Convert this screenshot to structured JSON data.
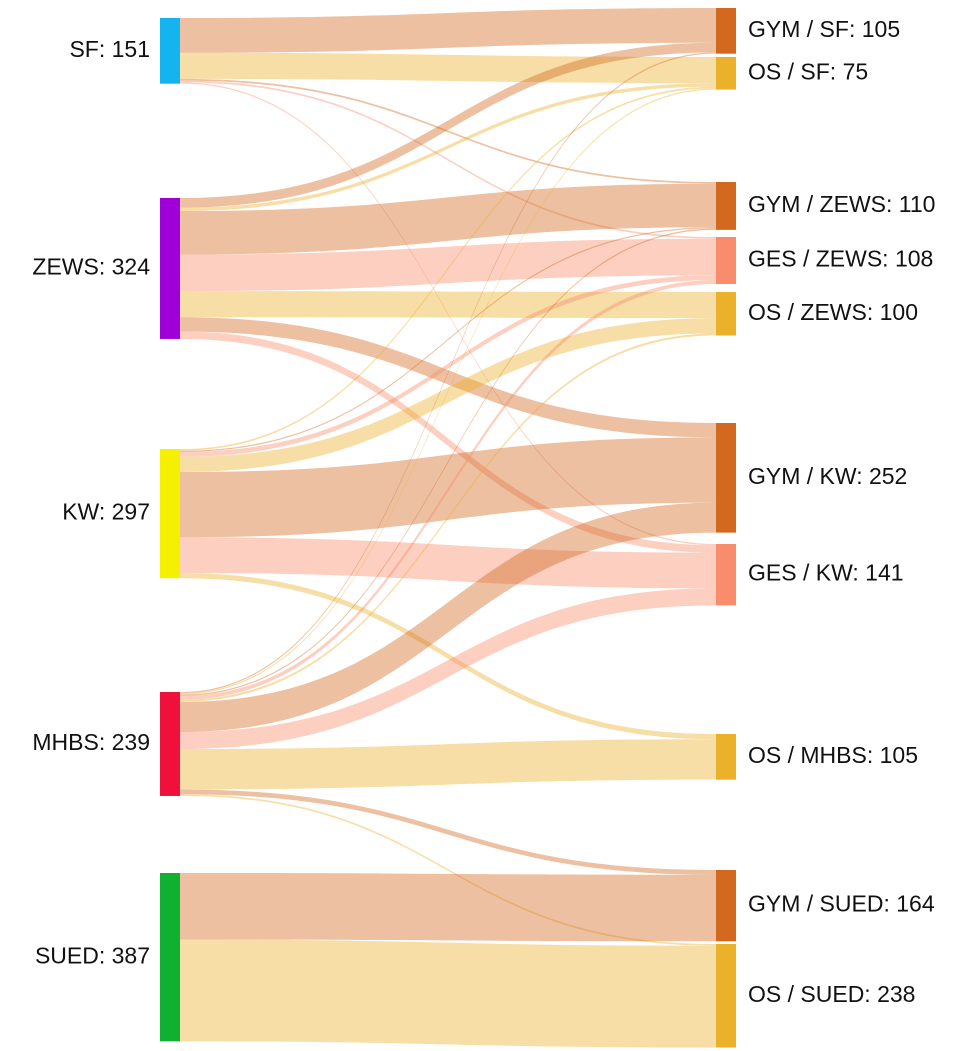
{
  "chart_data": {
    "type": "sankey",
    "nodes": [
      {
        "name": "SF: 151",
        "value": 151,
        "color": "#14b4f0"
      },
      {
        "name": "ZEWS: 324",
        "value": 324,
        "color": "#a000d8"
      },
      {
        "name": "KW: 297",
        "value": 297,
        "color": "#f5f000"
      },
      {
        "name": "MHBS: 239",
        "value": 239,
        "color": "#f0103c"
      },
      {
        "name": "SUED: 387",
        "value": 387,
        "color": "#10b030"
      },
      {
        "name": "GYM / SF: 105",
        "value": 105,
        "color": "#d2691e"
      },
      {
        "name": "OS / SF: 75",
        "value": 75,
        "color": "#ecb12a"
      },
      {
        "name": "GYM / ZEWS: 110",
        "value": 110,
        "color": "#d2691e"
      },
      {
        "name": "GES / ZEWS: 108",
        "value": 108,
        "color": "#f88c6c"
      },
      {
        "name": "OS / ZEWS: 100",
        "value": 100,
        "color": "#ecb12a"
      },
      {
        "name": "GYM / KW: 252",
        "value": 252,
        "color": "#d2691e"
      },
      {
        "name": "GES / KW: 141",
        "value": 141,
        "color": "#f88c6c"
      },
      {
        "name": "OS / MHBS: 105",
        "value": 105,
        "color": "#ecb12a"
      },
      {
        "name": "GYM / SUED: 164",
        "value": 164,
        "color": "#d2691e"
      },
      {
        "name": "OS / SUED: 238",
        "value": 238,
        "color": "#ecb12a"
      }
    ],
    "links": [
      {
        "source": 0,
        "target": 5,
        "value": 80
      },
      {
        "source": 0,
        "target": 6,
        "value": 60
      },
      {
        "source": 0,
        "target": 7,
        "value": 4
      },
      {
        "source": 0,
        "target": 8,
        "value": 4
      },
      {
        "source": 0,
        "target": 11,
        "value": 3
      },
      {
        "source": 1,
        "target": 5,
        "value": 22
      },
      {
        "source": 1,
        "target": 6,
        "value": 8
      },
      {
        "source": 1,
        "target": 7,
        "value": 100
      },
      {
        "source": 1,
        "target": 8,
        "value": 84
      },
      {
        "source": 1,
        "target": 9,
        "value": 60
      },
      {
        "source": 1,
        "target": 10,
        "value": 33
      },
      {
        "source": 1,
        "target": 11,
        "value": 17
      },
      {
        "source": 2,
        "target": 6,
        "value": 4
      },
      {
        "source": 2,
        "target": 7,
        "value": 3
      },
      {
        "source": 2,
        "target": 8,
        "value": 11
      },
      {
        "source": 2,
        "target": 9,
        "value": 35
      },
      {
        "source": 2,
        "target": 10,
        "value": 150
      },
      {
        "source": 2,
        "target": 11,
        "value": 82
      },
      {
        "source": 2,
        "target": 12,
        "value": 12
      },
      {
        "source": 3,
        "target": 5,
        "value": 3
      },
      {
        "source": 3,
        "target": 6,
        "value": 3
      },
      {
        "source": 3,
        "target": 7,
        "value": 3
      },
      {
        "source": 3,
        "target": 8,
        "value": 9
      },
      {
        "source": 3,
        "target": 9,
        "value": 5
      },
      {
        "source": 3,
        "target": 10,
        "value": 69
      },
      {
        "source": 3,
        "target": 11,
        "value": 39
      },
      {
        "source": 3,
        "target": 12,
        "value": 93
      },
      {
        "source": 3,
        "target": 13,
        "value": 11
      },
      {
        "source": 3,
        "target": 14,
        "value": 4
      },
      {
        "source": 4,
        "target": 13,
        "value": 153
      },
      {
        "source": 4,
        "target": 14,
        "value": 234
      }
    ]
  }
}
